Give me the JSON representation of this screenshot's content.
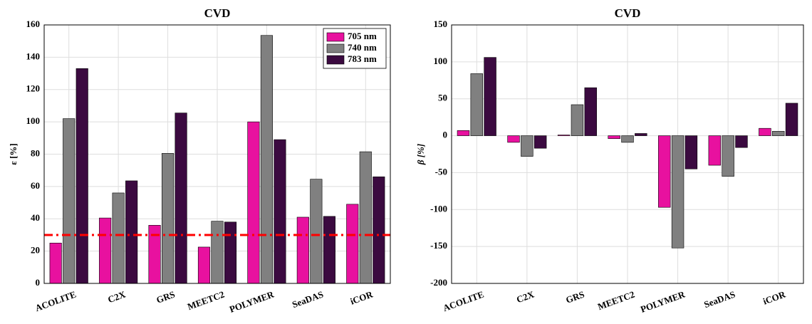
{
  "chart_data": [
    {
      "type": "bar",
      "title": "CVD",
      "y_label": "ε [%]",
      "categories": [
        "ACOLITE",
        "C2X",
        "GRS",
        "MEETC2",
        "POLYMER",
        "SeaDAS",
        "iCOR"
      ],
      "series": [
        {
          "name": "705 nm",
          "color": "#e8119f",
          "values": [
            25,
            40.5,
            36,
            22.5,
            100,
            41,
            49
          ]
        },
        {
          "name": "740 nm",
          "color": "#808080",
          "values": [
            102,
            56,
            80.5,
            38.5,
            153.5,
            64.5,
            81.5
          ]
        },
        {
          "name": "783 nm",
          "color": "#3b0a40",
          "values": [
            133,
            63.5,
            105.5,
            38,
            89,
            41.5,
            66
          ]
        }
      ],
      "ylim": [
        0,
        160
      ],
      "yticks": [
        0,
        20,
        40,
        60,
        80,
        100,
        120,
        140,
        160
      ],
      "grid": true,
      "legend": "upper right",
      "reference_line": 30,
      "reference_color": "#ff0000"
    },
    {
      "type": "bar",
      "title": "CVD",
      "y_label": "β [%]",
      "categories": [
        "ACOLITE",
        "C2X",
        "GRS",
        "MEETC2",
        "POLYMER",
        "SeaDAS",
        "iCOR"
      ],
      "series": [
        {
          "name": "705 nm",
          "color": "#e8119f",
          "values": [
            7,
            -9,
            1,
            -4,
            -97,
            -40,
            10
          ]
        },
        {
          "name": "740 nm",
          "color": "#808080",
          "values": [
            84,
            -28,
            42,
            -9,
            -152,
            -55,
            6
          ]
        },
        {
          "name": "783 nm",
          "color": "#3b0a40",
          "values": [
            106,
            -17,
            65,
            3,
            -45,
            -16,
            44
          ]
        }
      ],
      "ylim": [
        -200,
        150
      ],
      "yticks": [
        -200,
        -150,
        -100,
        -50,
        0,
        50,
        100,
        150
      ],
      "grid": true
    }
  ]
}
